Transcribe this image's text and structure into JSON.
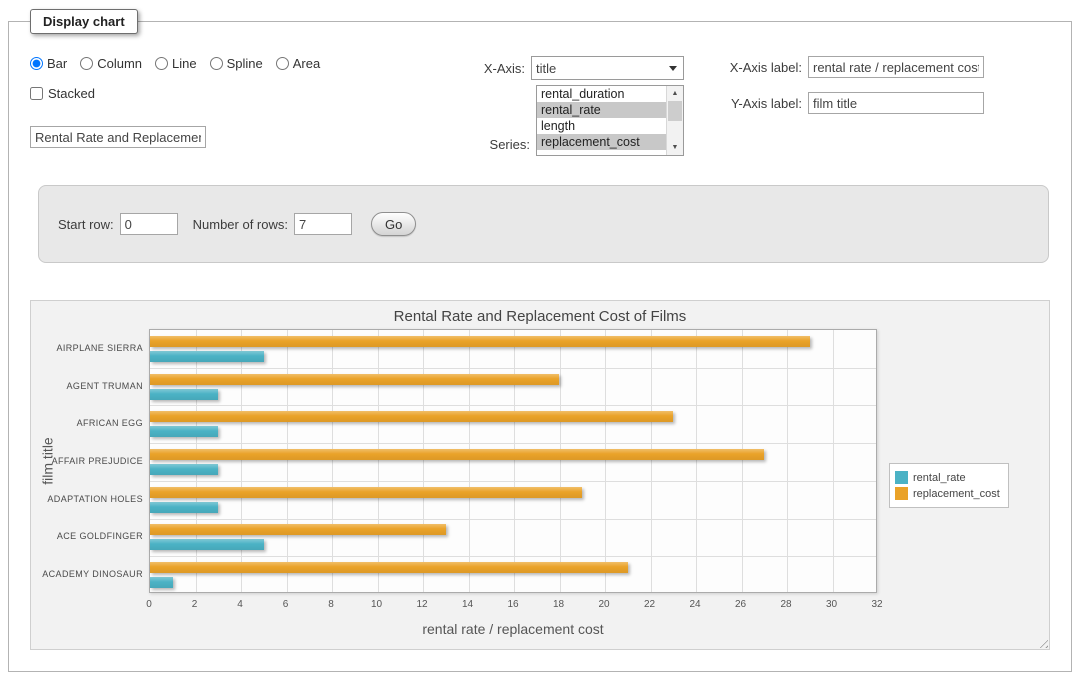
{
  "fieldset": {
    "legend": "Display chart"
  },
  "controls": {
    "chart_types": [
      {
        "label": "Bar",
        "checked": true
      },
      {
        "label": "Column",
        "checked": false
      },
      {
        "label": "Line",
        "checked": false
      },
      {
        "label": "Spline",
        "checked": false
      },
      {
        "label": "Area",
        "checked": false
      }
    ],
    "stacked": {
      "label": "Stacked",
      "checked": false
    },
    "chart_title_input": {
      "value": "Rental Rate and Replacement Cost of Films"
    },
    "x_axis": {
      "label": "X-Axis:",
      "selected": "title"
    },
    "series": {
      "label": "Series:",
      "options": [
        {
          "label": "rental_duration",
          "selected": false
        },
        {
          "label": "rental_rate",
          "selected": true
        },
        {
          "label": "length",
          "selected": false
        },
        {
          "label": "replacement_cost",
          "selected": true
        }
      ]
    },
    "x_axis_label": {
      "label": "X-Axis label:",
      "value": "rental rate / replacement cost"
    },
    "y_axis_label": {
      "label": "Y-Axis label:",
      "value": "film title"
    }
  },
  "rows_panel": {
    "start_row": {
      "label": "Start row:",
      "value": "0"
    },
    "number_of_rows": {
      "label": "Number of rows:",
      "value": "7"
    },
    "go_button": "Go"
  },
  "chart_data": {
    "type": "bar",
    "orientation": "horizontal",
    "title": "Rental Rate and Replacement Cost of Films",
    "categories": [
      "AIRPLANE SIERRA",
      "AGENT TRUMAN",
      "AFRICAN EGG",
      "AFFAIR PREJUDICE",
      "ADAPTATION HOLES",
      "ACE GOLDFINGER",
      "ACADEMY DINOSAUR"
    ],
    "series": [
      {
        "name": "rental_rate",
        "color": "#4bb2c5",
        "values": [
          4.99,
          2.99,
          2.99,
          2.99,
          2.99,
          4.99,
          0.99
        ]
      },
      {
        "name": "replacement_cost",
        "color": "#eaa228",
        "values": [
          28.99,
          17.99,
          22.99,
          26.99,
          18.99,
          12.99,
          20.99
        ]
      }
    ],
    "xlabel": "rental rate / replacement cost",
    "ylabel": "film title",
    "xlim": [
      0,
      32
    ],
    "x_tick_step": 2,
    "grid": true,
    "legend_position": "right",
    "legend_entries": [
      "rental_rate",
      "replacement_cost"
    ]
  }
}
